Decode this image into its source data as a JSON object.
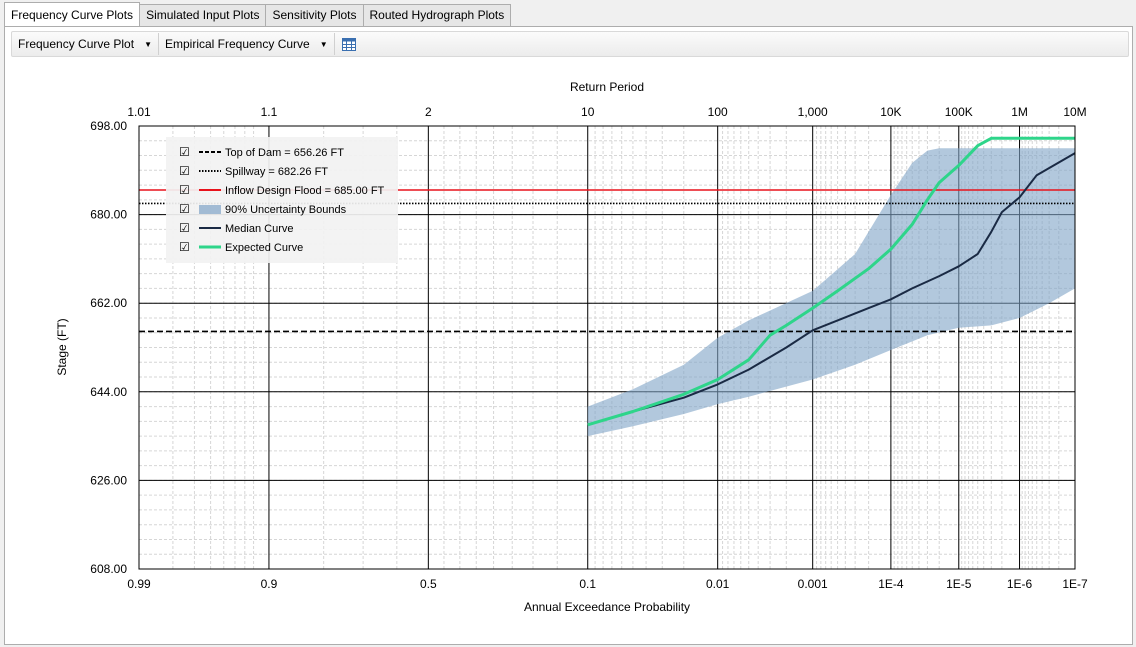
{
  "tabs": [
    {
      "label": "Frequency Curve Plots",
      "active": true
    },
    {
      "label": "Simulated Input Plots",
      "active": false
    },
    {
      "label": "Sensitivity Plots",
      "active": false
    },
    {
      "label": "Routed Hydrograph Plots",
      "active": false
    }
  ],
  "toolbar": {
    "plot_select": "Frequency Curve Plot",
    "curve_select": "Empirical Frequency Curve",
    "table_icon": "table-icon"
  },
  "chart_data": {
    "type": "line",
    "top_axis_label": "Return Period",
    "top_ticks": [
      {
        "p": 0.99,
        "label": "1.01"
      },
      {
        "p": 0.9,
        "label": "1.1"
      },
      {
        "p": 0.5,
        "label": "2"
      },
      {
        "p": 0.1,
        "label": "10"
      },
      {
        "p": 0.01,
        "label": "100"
      },
      {
        "p": 0.001,
        "label": "1,000"
      },
      {
        "p": 0.0001,
        "label": "10K"
      },
      {
        "p": 1e-05,
        "label": "100K"
      },
      {
        "p": 1e-06,
        "label": "1M"
      },
      {
        "p": 1e-07,
        "label": "10M"
      }
    ],
    "xlabel": "Annual Exceedance Probability",
    "bottom_ticks": [
      {
        "p": 0.99,
        "label": "0.99"
      },
      {
        "p": 0.9,
        "label": "0.9"
      },
      {
        "p": 0.5,
        "label": "0.5"
      },
      {
        "p": 0.1,
        "label": "0.1"
      },
      {
        "p": 0.01,
        "label": "0.01"
      },
      {
        "p": 0.001,
        "label": "0.001"
      },
      {
        "p": 0.0001,
        "label": "1E-4"
      },
      {
        "p": 1e-05,
        "label": "1E-5"
      },
      {
        "p": 1e-06,
        "label": "1E-6"
      },
      {
        "p": 1e-07,
        "label": "1E-7"
      }
    ],
    "xlim": [
      0.99,
      1e-07
    ],
    "x_scale": "probability",
    "ylabel": "Stage (FT)",
    "ylim": [
      608.0,
      698.0
    ],
    "y_ticks": [
      {
        "v": 608.0,
        "label": "608.00"
      },
      {
        "v": 626.0,
        "label": "626.00"
      },
      {
        "v": 644.0,
        "label": "644.00"
      },
      {
        "v": 662.0,
        "label": "662.00"
      },
      {
        "v": 680.0,
        "label": "680.00"
      },
      {
        "v": 698.0,
        "label": "698.00"
      }
    ],
    "grid": true,
    "legend_position": "top-left",
    "reference_lines": [
      {
        "name": "Top of Dam = 656.26 FT",
        "value": 656.26,
        "style": "dashed",
        "color": "#000000"
      },
      {
        "name": "Spillway = 682.26 FT",
        "value": 682.26,
        "style": "dotted",
        "color": "#000000"
      },
      {
        "name": "Inflow Design Flood = 685.00 FT",
        "value": 685.0,
        "style": "solid",
        "color": "#e8121b"
      }
    ],
    "uncertainty_band": {
      "name": "90% Uncertainty Bounds",
      "color": "#7fa3c6",
      "upper": [
        [
          0.1,
          641.0
        ],
        [
          0.05,
          644.5
        ],
        [
          0.02,
          649.5
        ],
        [
          0.01,
          655.0
        ],
        [
          0.005,
          658.5
        ],
        [
          0.001,
          664.5
        ],
        [
          0.0003,
          672.0
        ],
        [
          0.0001,
          684.0
        ],
        [
          5e-05,
          690.5
        ],
        [
          3e-05,
          693.0
        ],
        [
          2e-05,
          693.5
        ],
        [
          1e-05,
          693.5
        ],
        [
          3e-06,
          693.5
        ],
        [
          1e-06,
          693.5
        ],
        [
          1e-07,
          693.5
        ]
      ],
      "lower": [
        [
          0.1,
          635.0
        ],
        [
          0.05,
          637.0
        ],
        [
          0.02,
          639.5
        ],
        [
          0.01,
          641.5
        ],
        [
          0.005,
          643.0
        ],
        [
          0.001,
          646.5
        ],
        [
          0.0003,
          649.5
        ],
        [
          0.0001,
          652.5
        ],
        [
          3e-05,
          655.5
        ],
        [
          1e-05,
          657.0
        ],
        [
          3e-06,
          657.5
        ],
        [
          1e-06,
          659.0
        ],
        [
          3e-07,
          662.0
        ],
        [
          1e-07,
          665.0
        ]
      ]
    },
    "series": [
      {
        "name": "Median Curve",
        "color": "#1a2a44",
        "points": [
          [
            0.1,
            637.3
          ],
          [
            0.05,
            640.0
          ],
          [
            0.02,
            642.8
          ],
          [
            0.01,
            645.5
          ],
          [
            0.005,
            648.5
          ],
          [
            0.002,
            653.0
          ],
          [
            0.001,
            656.5
          ],
          [
            0.0005,
            658.5
          ],
          [
            0.0002,
            661.0
          ],
          [
            0.0001,
            662.8
          ],
          [
            5e-05,
            665.0
          ],
          [
            2e-05,
            667.5
          ],
          [
            1e-05,
            669.5
          ],
          [
            5e-06,
            672.0
          ],
          [
            3e-06,
            676.5
          ],
          [
            2e-06,
            680.5
          ],
          [
            1e-06,
            683.5
          ],
          [
            5e-07,
            688.0
          ],
          [
            1e-07,
            692.5
          ]
        ]
      },
      {
        "name": "Expected Curve",
        "color": "#2ed58a",
        "points": [
          [
            0.1,
            637.3
          ],
          [
            0.05,
            640.0
          ],
          [
            0.02,
            643.5
          ],
          [
            0.01,
            646.5
          ],
          [
            0.005,
            650.5
          ],
          [
            0.003,
            655.5
          ],
          [
            0.002,
            657.5
          ],
          [
            0.001,
            661.0
          ],
          [
            0.0005,
            664.5
          ],
          [
            0.0002,
            669.0
          ],
          [
            0.0001,
            673.0
          ],
          [
            5e-05,
            678.0
          ],
          [
            3e-05,
            683.0
          ],
          [
            2e-05,
            686.5
          ],
          [
            1e-05,
            690.0
          ],
          [
            5e-06,
            694.0
          ],
          [
            3e-06,
            695.5
          ],
          [
            1e-06,
            695.5
          ],
          [
            1e-07,
            695.5
          ]
        ]
      }
    ]
  }
}
